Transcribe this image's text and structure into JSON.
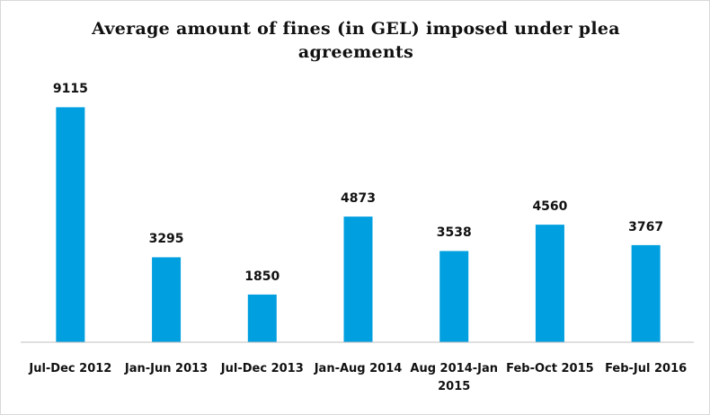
{
  "chart_data": {
    "type": "bar",
    "title": "Average amount of fines (in GEL) imposed under plea agreements",
    "categories": [
      "Jul-Dec 2012",
      "Jan-Jun 2013",
      "Jul-Dec 2013",
      "Jan-Aug 2014",
      "Aug 2014-Jan 2015",
      "Feb-Oct 2015",
      "Feb-Jul 2016"
    ],
    "values": [
      9115,
      3295,
      1850,
      4873,
      3538,
      4560,
      3767
    ],
    "color": "#009fdf",
    "ylim": [
      0,
      10000
    ]
  }
}
